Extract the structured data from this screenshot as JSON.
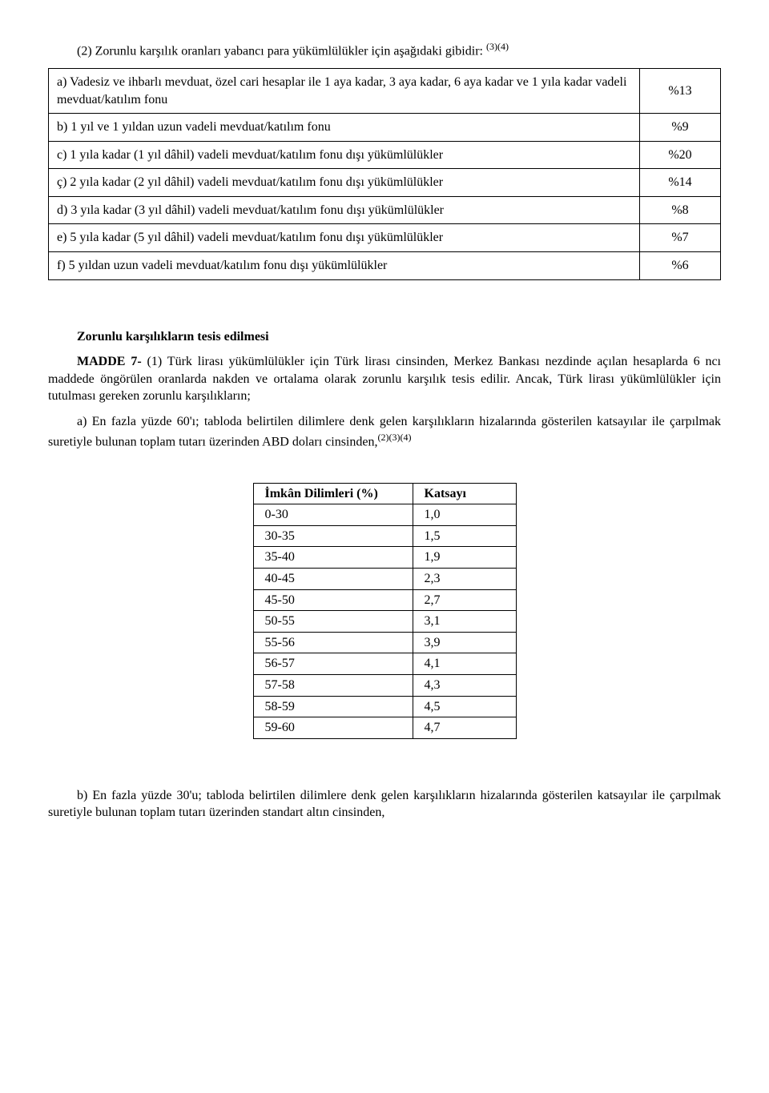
{
  "intro": {
    "text": "(2) Zorunlu karşılık oranları yabancı para yükümlülükler için aşağıdaki gibidir: ",
    "sup": "(3)(4)"
  },
  "table1": {
    "rows": [
      {
        "label": "a) Vadesiz ve ihbarlı mevduat, özel cari hesaplar ile 1 aya kadar, 3 aya kadar, 6 aya kadar ve 1 yıla kadar vadeli mevduat/katılım fonu",
        "value": "%13"
      },
      {
        "label": "b) 1 yıl ve 1 yıldan uzun vadeli mevduat/katılım fonu",
        "value": "%9"
      },
      {
        "label": "c) 1 yıla kadar (1 yıl dâhil) vadeli mevduat/katılım fonu dışı yükümlülükler",
        "value": "%20"
      },
      {
        "label": "ç) 2 yıla kadar (2 yıl dâhil) vadeli mevduat/katılım fonu dışı yükümlülükler",
        "value": "%14"
      },
      {
        "label": "d) 3 yıla kadar (3 yıl dâhil) vadeli mevduat/katılım fonu dışı yükümlülükler",
        "value": "%8"
      },
      {
        "label": "e) 5 yıla kadar (5 yıl dâhil) vadeli mevduat/katılım fonu dışı yükümlülükler",
        "value": "%7"
      },
      {
        "label": "f) 5 yıldan uzun vadeli mevduat/katılım fonu dışı yükümlülükler",
        "value": "%6"
      }
    ]
  },
  "heading": "Zorunlu karşılıkların tesis edilmesi",
  "madde7": {
    "lead": "MADDE 7-",
    "body": " (1) Türk lirası yükümlülükler için Türk lirası cinsinden, Merkez Bankası nezdinde açılan hesaplarda 6 ncı maddede öngörülen oranlarda nakden ve ortalama olarak zorunlu karşılık tesis edilir. Ancak, Türk lirası yükümlülükler için tutulması gereken zorunlu karşılıkların;"
  },
  "paraA": {
    "text": "a) En fazla yüzde 60'ı; tabloda belirtilen dilimlere denk gelen karşılıkların hizalarında gösterilen katsayılar ile çarpılmak suretiyle bulunan toplam tutarı üzerinden ABD doları cinsinden,",
    "sup": "(2)(3)(4)"
  },
  "table2": {
    "headers": [
      "İmkân Dilimleri (%)",
      "Katsayı"
    ],
    "rows": [
      [
        "0-30",
        "1,0"
      ],
      [
        "30-35",
        "1,5"
      ],
      [
        "35-40",
        "1,9"
      ],
      [
        "40-45",
        "2,3"
      ],
      [
        "45-50",
        "2,7"
      ],
      [
        "50-55",
        "3,1"
      ],
      [
        "55-56",
        "3,9"
      ],
      [
        "56-57",
        "4,1"
      ],
      [
        "57-58",
        "4,3"
      ],
      [
        "58-59",
        "4,5"
      ],
      [
        "59-60",
        "4,7"
      ]
    ]
  },
  "paraB": "b) En fazla yüzde 30'u; tabloda belirtilen dilimlere denk gelen karşılıkların hizalarında gösterilen katsayılar ile çarpılmak suretiyle bulunan toplam tutarı üzerinden standart altın cinsinden,"
}
